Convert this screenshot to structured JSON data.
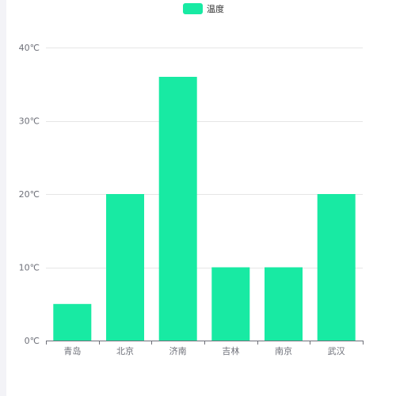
{
  "chart_data": {
    "type": "bar",
    "categories": [
      "青岛",
      "北京",
      "济南",
      "吉林",
      "南京",
      "武汉"
    ],
    "series": [
      {
        "name": "温度",
        "values": [
          5,
          20,
          36,
          10,
          10,
          20
        ]
      }
    ],
    "y_ticks": [
      "0℃",
      "10℃",
      "20℃",
      "30℃",
      "40℃"
    ],
    "ylim": [
      0,
      40
    ],
    "y_tick_values": [
      0,
      10,
      20,
      30,
      40
    ],
    "grid": true,
    "legend_position": "top-center",
    "colors": {
      "bar": "#18eaa3",
      "grid": "#e6e6e6",
      "axis": "#6e7079",
      "page_strip": "#f3f3f7"
    }
  }
}
